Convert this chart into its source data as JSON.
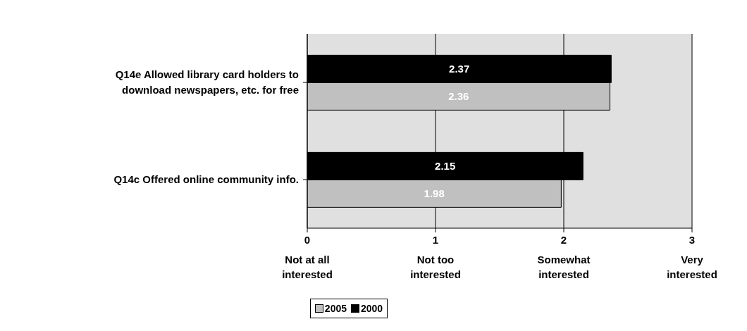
{
  "chart_data": {
    "type": "bar",
    "orientation": "horizontal",
    "categories": [
      "Q14e Allowed library card holders to download newspapers, etc. for free",
      "Q14c Offered online community info."
    ],
    "series": [
      {
        "name": "2005",
        "color": "#c0c0c0",
        "values": [
          2.36,
          1.98
        ]
      },
      {
        "name": "2000",
        "color": "#000000",
        "values": [
          2.37,
          2.15
        ]
      }
    ],
    "xlim": [
      0,
      3
    ],
    "xticks": [
      {
        "value": 0,
        "label": "0\nNot at all\ninterested"
      },
      {
        "value": 1,
        "label": "1\nNot too\ninterested"
      },
      {
        "value": 2,
        "label": "2\nSomewhat\ninterested"
      },
      {
        "value": 3,
        "label": "3\nVery\ninterested"
      }
    ],
    "grid": "x",
    "data_labels": true,
    "legend": "bottom"
  }
}
